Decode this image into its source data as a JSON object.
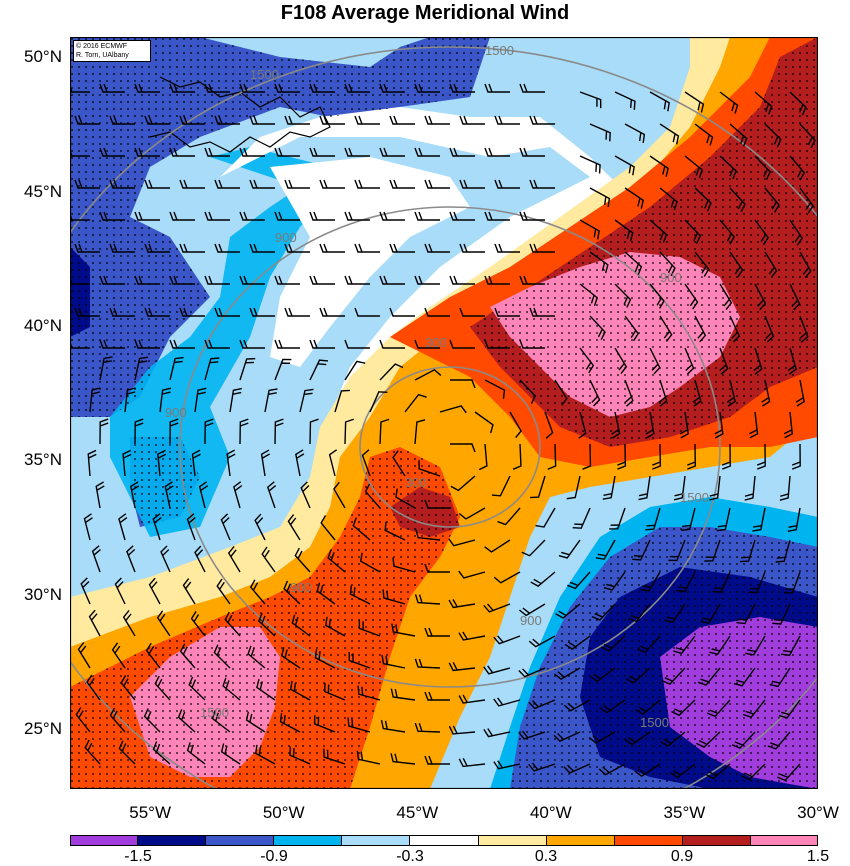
{
  "title": "F108 Average Meridional Wind",
  "credit": {
    "line1": "© 2016 ECMWF",
    "line2": "R. Torn, UAlbany"
  },
  "lat_labels": [
    "50°N",
    "45°N",
    "40°N",
    "35°N",
    "30°N",
    "25°N"
  ],
  "lat_values": [
    50,
    45,
    40,
    35,
    30,
    25
  ],
  "lon_labels": [
    "55°W",
    "50°W",
    "45°W",
    "40°W",
    "35°W",
    "30°W"
  ],
  "lon_values": [
    -55,
    -50,
    -45,
    -40,
    -35,
    -30
  ],
  "map_extent": {
    "lon": [
      -58,
      -30
    ],
    "lat": [
      22.8,
      50.8
    ]
  },
  "contour_labels": [
    "1500",
    "1500",
    "900",
    "900",
    "300",
    "300",
    "900",
    "900",
    "900",
    "1500",
    "1500",
    "1500"
  ],
  "colorbar": {
    "colors": [
      "#a13ddc",
      "#000b8a",
      "#3a56c8",
      "#00b4ef",
      "#a8dcf8",
      "#ffffff",
      "#ffeaa0",
      "#ffa600",
      "#ff4a00",
      "#b41e1e",
      "#ff85b8"
    ],
    "labels": [
      "-1.5",
      "-0.9",
      "-0.3",
      "0.3",
      "0.9",
      "1.5"
    ]
  }
}
